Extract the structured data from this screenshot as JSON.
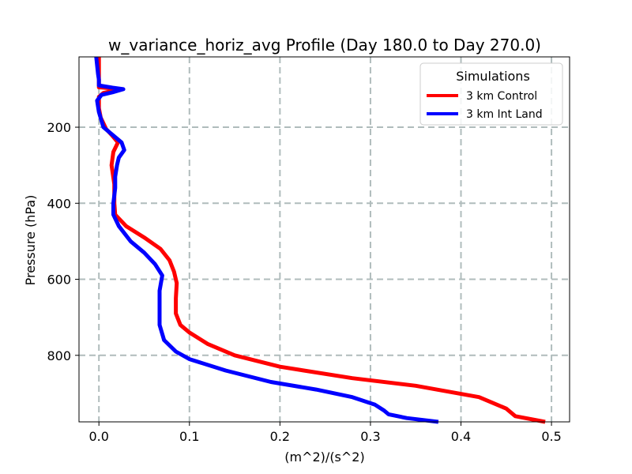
{
  "chart_data": {
    "type": "line",
    "title": "w_variance_horiz_avg Profile (Day 180.0 to Day 270.0)",
    "xlabel": "(m^2)/(s^2)",
    "ylabel": "Pressure (hPa)",
    "xlim": [
      -0.022,
      0.52
    ],
    "ylim": [
      975,
      15
    ],
    "y_inverted": true,
    "grid": true,
    "xticks": [
      {
        "value": 0.0,
        "label": "0.0"
      },
      {
        "value": 0.1,
        "label": "0.1"
      },
      {
        "value": 0.2,
        "label": "0.2"
      },
      {
        "value": 0.3,
        "label": "0.3"
      },
      {
        "value": 0.4,
        "label": "0.4"
      },
      {
        "value": 0.5,
        "label": "0.5"
      }
    ],
    "yticks": [
      {
        "value": 200,
        "label": "200"
      },
      {
        "value": 400,
        "label": "400"
      },
      {
        "value": 600,
        "label": "600"
      },
      {
        "value": 800,
        "label": "800"
      }
    ],
    "legend": {
      "title": "Simulations",
      "position": "top-right"
    },
    "series": [
      {
        "name": "3 km Control",
        "color": "#ff0000",
        "points": [
          [
            0.0,
            15
          ],
          [
            0.0,
            75
          ],
          [
            0.0,
            85
          ],
          [
            0.0,
            95
          ],
          [
            0.015,
            98
          ],
          [
            0.02,
            102
          ],
          [
            0.005,
            110
          ],
          [
            0.0,
            120
          ],
          [
            0.0,
            150
          ],
          [
            0.002,
            175
          ],
          [
            0.008,
            205
          ],
          [
            0.014,
            220
          ],
          [
            0.021,
            240
          ],
          [
            0.016,
            265
          ],
          [
            0.014,
            300
          ],
          [
            0.017,
            350
          ],
          [
            0.017,
            400
          ],
          [
            0.018,
            430
          ],
          [
            0.03,
            460
          ],
          [
            0.05,
            490
          ],
          [
            0.068,
            520
          ],
          [
            0.078,
            550
          ],
          [
            0.083,
            580
          ],
          [
            0.086,
            610
          ],
          [
            0.085,
            650
          ],
          [
            0.085,
            690
          ],
          [
            0.09,
            720
          ],
          [
            0.1,
            740
          ],
          [
            0.12,
            770
          ],
          [
            0.15,
            800
          ],
          [
            0.2,
            830
          ],
          [
            0.28,
            860
          ],
          [
            0.35,
            880
          ],
          [
            0.42,
            910
          ],
          [
            0.45,
            940
          ],
          [
            0.46,
            960
          ],
          [
            0.493,
            975
          ]
        ]
      },
      {
        "name": "3 km Int Land",
        "color": "#0000ff",
        "points": [
          [
            -0.003,
            15
          ],
          [
            -0.001,
            60
          ],
          [
            0.0,
            75
          ],
          [
            0.0,
            90
          ],
          [
            0.015,
            96
          ],
          [
            0.027,
            100
          ],
          [
            0.015,
            108
          ],
          [
            0.003,
            115
          ],
          [
            -0.002,
            130
          ],
          [
            0.0,
            160
          ],
          [
            0.005,
            200
          ],
          [
            0.015,
            220
          ],
          [
            0.025,
            240
          ],
          [
            0.028,
            260
          ],
          [
            0.022,
            280
          ],
          [
            0.02,
            300
          ],
          [
            0.018,
            330
          ],
          [
            0.018,
            360
          ],
          [
            0.016,
            400
          ],
          [
            0.016,
            430
          ],
          [
            0.022,
            460
          ],
          [
            0.035,
            500
          ],
          [
            0.05,
            530
          ],
          [
            0.062,
            560
          ],
          [
            0.07,
            590
          ],
          [
            0.067,
            630
          ],
          [
            0.067,
            670
          ],
          [
            0.067,
            720
          ],
          [
            0.072,
            760
          ],
          [
            0.085,
            790
          ],
          [
            0.1,
            810
          ],
          [
            0.14,
            840
          ],
          [
            0.19,
            870
          ],
          [
            0.24,
            890
          ],
          [
            0.28,
            910
          ],
          [
            0.305,
            930
          ],
          [
            0.315,
            945
          ],
          [
            0.32,
            955
          ],
          [
            0.34,
            965
          ],
          [
            0.375,
            975
          ]
        ]
      }
    ]
  }
}
